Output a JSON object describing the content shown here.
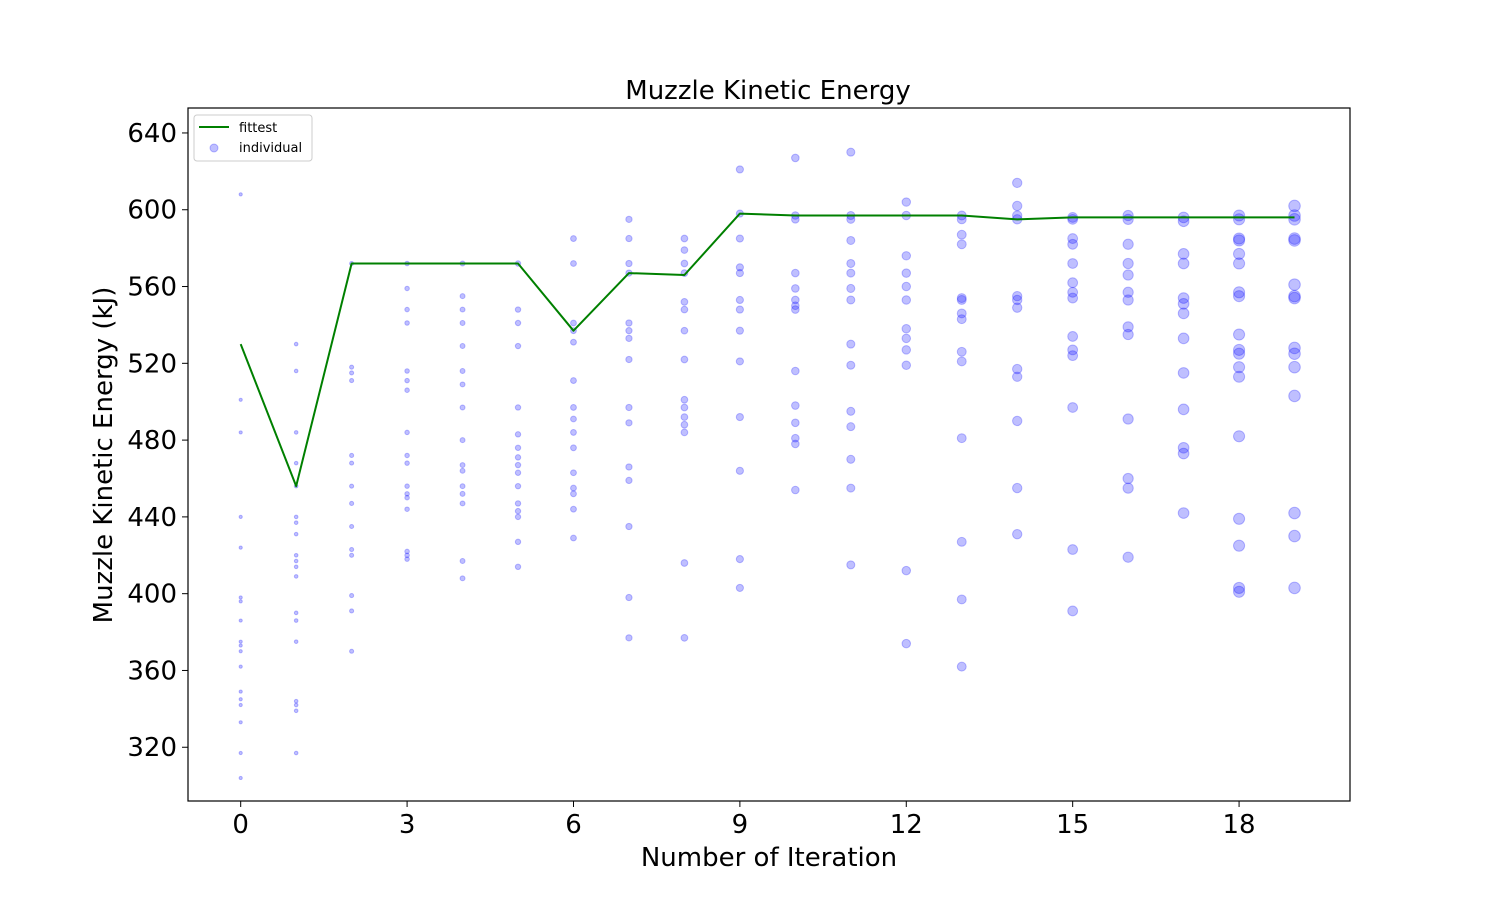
{
  "chart_data": {
    "type": "line+scatter",
    "title": "Muzzle Kinetic Energy",
    "xlabel": "Number of Iteration",
    "ylabel": "Muzzle Kinetic Energy (kJ)",
    "xlim": [
      -0.95,
      20
    ],
    "ylim": [
      292,
      653
    ],
    "x_ticks": [
      0,
      3,
      6,
      9,
      12,
      15,
      18
    ],
    "y_ticks": [
      320,
      360,
      400,
      440,
      480,
      520,
      560,
      600,
      640
    ],
    "grid": false,
    "legend_position": "top-left",
    "colors": {
      "fittest": "#008000",
      "individual": "#0000ff"
    },
    "series": [
      {
        "name": "fittest",
        "kind": "line",
        "x": [
          0,
          1,
          2,
          3,
          4,
          5,
          6,
          7,
          8,
          9,
          10,
          11,
          12,
          13,
          14,
          15,
          16,
          17,
          18,
          19
        ],
        "y": [
          530,
          456,
          572,
          572,
          572,
          572,
          537,
          567,
          566,
          598,
          597,
          597,
          597,
          597,
          595,
          596,
          596,
          596,
          596,
          596
        ]
      },
      {
        "name": "individual",
        "kind": "scatter",
        "points": [
          [
            0,
            608
          ],
          [
            0,
            501
          ],
          [
            0,
            484
          ],
          [
            0,
            440
          ],
          [
            0,
            424
          ],
          [
            0,
            398
          ],
          [
            0,
            396
          ],
          [
            0,
            386
          ],
          [
            0,
            375
          ],
          [
            0,
            373
          ],
          [
            0,
            370
          ],
          [
            0,
            362
          ],
          [
            0,
            349
          ],
          [
            0,
            345
          ],
          [
            0,
            342
          ],
          [
            0,
            333
          ],
          [
            0,
            317
          ],
          [
            0,
            304
          ],
          [
            1,
            530
          ],
          [
            1,
            516
          ],
          [
            1,
            484
          ],
          [
            1,
            468
          ],
          [
            1,
            456
          ],
          [
            1,
            440
          ],
          [
            1,
            437
          ],
          [
            1,
            431
          ],
          [
            1,
            420
          ],
          [
            1,
            417
          ],
          [
            1,
            414
          ],
          [
            1,
            409
          ],
          [
            1,
            390
          ],
          [
            1,
            386
          ],
          [
            1,
            375
          ],
          [
            1,
            344
          ],
          [
            1,
            342
          ],
          [
            1,
            339
          ],
          [
            1,
            317
          ],
          [
            2,
            572
          ],
          [
            2,
            518
          ],
          [
            2,
            515
          ],
          [
            2,
            511
          ],
          [
            2,
            472
          ],
          [
            2,
            468
          ],
          [
            2,
            456
          ],
          [
            2,
            447
          ],
          [
            2,
            435
          ],
          [
            2,
            423
          ],
          [
            2,
            420
          ],
          [
            2,
            399
          ],
          [
            2,
            391
          ],
          [
            2,
            370
          ],
          [
            3,
            572
          ],
          [
            3,
            559
          ],
          [
            3,
            548
          ],
          [
            3,
            541
          ],
          [
            3,
            516
          ],
          [
            3,
            511
          ],
          [
            3,
            506
          ],
          [
            3,
            484
          ],
          [
            3,
            472
          ],
          [
            3,
            468
          ],
          [
            3,
            456
          ],
          [
            3,
            452
          ],
          [
            3,
            450
          ],
          [
            3,
            444
          ],
          [
            3,
            422
          ],
          [
            3,
            420
          ],
          [
            3,
            418
          ],
          [
            4,
            572
          ],
          [
            4,
            555
          ],
          [
            4,
            548
          ],
          [
            4,
            541
          ],
          [
            4,
            529
          ],
          [
            4,
            516
          ],
          [
            4,
            509
          ],
          [
            4,
            497
          ],
          [
            4,
            480
          ],
          [
            4,
            467
          ],
          [
            4,
            464
          ],
          [
            4,
            456
          ],
          [
            4,
            452
          ],
          [
            4,
            447
          ],
          [
            4,
            417
          ],
          [
            4,
            408
          ],
          [
            5,
            572
          ],
          [
            5,
            548
          ],
          [
            5,
            541
          ],
          [
            5,
            529
          ],
          [
            5,
            497
          ],
          [
            5,
            483
          ],
          [
            5,
            476
          ],
          [
            5,
            471
          ],
          [
            5,
            467
          ],
          [
            5,
            463
          ],
          [
            5,
            456
          ],
          [
            5,
            447
          ],
          [
            5,
            443
          ],
          [
            5,
            440
          ],
          [
            5,
            427
          ],
          [
            5,
            414
          ],
          [
            6,
            585
          ],
          [
            6,
            572
          ],
          [
            6,
            541
          ],
          [
            6,
            537
          ],
          [
            6,
            531
          ],
          [
            6,
            511
          ],
          [
            6,
            497
          ],
          [
            6,
            491
          ],
          [
            6,
            484
          ],
          [
            6,
            476
          ],
          [
            6,
            463
          ],
          [
            6,
            455
          ],
          [
            6,
            452
          ],
          [
            6,
            444
          ],
          [
            6,
            429
          ],
          [
            7,
            595
          ],
          [
            7,
            585
          ],
          [
            7,
            572
          ],
          [
            7,
            567
          ],
          [
            7,
            541
          ],
          [
            7,
            537
          ],
          [
            7,
            533
          ],
          [
            7,
            522
          ],
          [
            7,
            497
          ],
          [
            7,
            489
          ],
          [
            7,
            466
          ],
          [
            7,
            459
          ],
          [
            7,
            435
          ],
          [
            7,
            398
          ],
          [
            7,
            377
          ],
          [
            8,
            585
          ],
          [
            8,
            579
          ],
          [
            8,
            572
          ],
          [
            8,
            567
          ],
          [
            8,
            552
          ],
          [
            8,
            548
          ],
          [
            8,
            537
          ],
          [
            8,
            522
          ],
          [
            8,
            501
          ],
          [
            8,
            497
          ],
          [
            8,
            492
          ],
          [
            8,
            488
          ],
          [
            8,
            484
          ],
          [
            8,
            416
          ],
          [
            8,
            377
          ],
          [
            9,
            621
          ],
          [
            9,
            598
          ],
          [
            9,
            585
          ],
          [
            9,
            570
          ],
          [
            9,
            567
          ],
          [
            9,
            553
          ],
          [
            9,
            548
          ],
          [
            9,
            537
          ],
          [
            9,
            521
          ],
          [
            9,
            492
          ],
          [
            9,
            464
          ],
          [
            9,
            418
          ],
          [
            9,
            403
          ],
          [
            10,
            627
          ],
          [
            10,
            597
          ],
          [
            10,
            595
          ],
          [
            10,
            567
          ],
          [
            10,
            559
          ],
          [
            10,
            553
          ],
          [
            10,
            550
          ],
          [
            10,
            548
          ],
          [
            10,
            516
          ],
          [
            10,
            498
          ],
          [
            10,
            489
          ],
          [
            10,
            481
          ],
          [
            10,
            478
          ],
          [
            10,
            454
          ],
          [
            11,
            630
          ],
          [
            11,
            597
          ],
          [
            11,
            595
          ],
          [
            11,
            584
          ],
          [
            11,
            572
          ],
          [
            11,
            567
          ],
          [
            11,
            559
          ],
          [
            11,
            553
          ],
          [
            11,
            530
          ],
          [
            11,
            519
          ],
          [
            11,
            495
          ],
          [
            11,
            487
          ],
          [
            11,
            470
          ],
          [
            11,
            455
          ],
          [
            11,
            415
          ],
          [
            12,
            604
          ],
          [
            12,
            597
          ],
          [
            12,
            576
          ],
          [
            12,
            567
          ],
          [
            12,
            560
          ],
          [
            12,
            553
          ],
          [
            12,
            538
          ],
          [
            12,
            533
          ],
          [
            12,
            527
          ],
          [
            12,
            519
          ],
          [
            12,
            412
          ],
          [
            12,
            374
          ],
          [
            13,
            597
          ],
          [
            13,
            595
          ],
          [
            13,
            587
          ],
          [
            13,
            582
          ],
          [
            13,
            554
          ],
          [
            13,
            553
          ],
          [
            13,
            546
          ],
          [
            13,
            543
          ],
          [
            13,
            526
          ],
          [
            13,
            521
          ],
          [
            13,
            481
          ],
          [
            13,
            427
          ],
          [
            13,
            397
          ],
          [
            13,
            362
          ],
          [
            14,
            614
          ],
          [
            14,
            602
          ],
          [
            14,
            597
          ],
          [
            14,
            595
          ],
          [
            14,
            555
          ],
          [
            14,
            553
          ],
          [
            14,
            549
          ],
          [
            14,
            517
          ],
          [
            14,
            513
          ],
          [
            14,
            490
          ],
          [
            14,
            455
          ],
          [
            14,
            431
          ],
          [
            15,
            596
          ],
          [
            15,
            595
          ],
          [
            15,
            585
          ],
          [
            15,
            582
          ],
          [
            15,
            572
          ],
          [
            15,
            562
          ],
          [
            15,
            557
          ],
          [
            15,
            554
          ],
          [
            15,
            534
          ],
          [
            15,
            527
          ],
          [
            15,
            524
          ],
          [
            15,
            497
          ],
          [
            15,
            423
          ],
          [
            15,
            391
          ],
          [
            16,
            597
          ],
          [
            16,
            595
          ],
          [
            16,
            582
          ],
          [
            16,
            572
          ],
          [
            16,
            566
          ],
          [
            16,
            557
          ],
          [
            16,
            553
          ],
          [
            16,
            539
          ],
          [
            16,
            535
          ],
          [
            16,
            491
          ],
          [
            16,
            460
          ],
          [
            16,
            455
          ],
          [
            16,
            419
          ],
          [
            17,
            596
          ],
          [
            17,
            594
          ],
          [
            17,
            577
          ],
          [
            17,
            572
          ],
          [
            17,
            554
          ],
          [
            17,
            551
          ],
          [
            17,
            546
          ],
          [
            17,
            533
          ],
          [
            17,
            515
          ],
          [
            17,
            496
          ],
          [
            17,
            476
          ],
          [
            17,
            473
          ],
          [
            17,
            442
          ],
          [
            18,
            597
          ],
          [
            18,
            595
          ],
          [
            18,
            585
          ],
          [
            18,
            584
          ],
          [
            18,
            577
          ],
          [
            18,
            572
          ],
          [
            18,
            557
          ],
          [
            18,
            555
          ],
          [
            18,
            535
          ],
          [
            18,
            527
          ],
          [
            18,
            525
          ],
          [
            18,
            518
          ],
          [
            18,
            513
          ],
          [
            18,
            482
          ],
          [
            18,
            439
          ],
          [
            18,
            425
          ],
          [
            18,
            403
          ],
          [
            18,
            401
          ],
          [
            19,
            602
          ],
          [
            19,
            597
          ],
          [
            19,
            595
          ],
          [
            19,
            585
          ],
          [
            19,
            584
          ],
          [
            19,
            561
          ],
          [
            19,
            555
          ],
          [
            19,
            554
          ],
          [
            19,
            528
          ],
          [
            19,
            525
          ],
          [
            19,
            518
          ],
          [
            19,
            503
          ],
          [
            19,
            442
          ],
          [
            19,
            430
          ],
          [
            19,
            403
          ]
        ]
      }
    ]
  }
}
